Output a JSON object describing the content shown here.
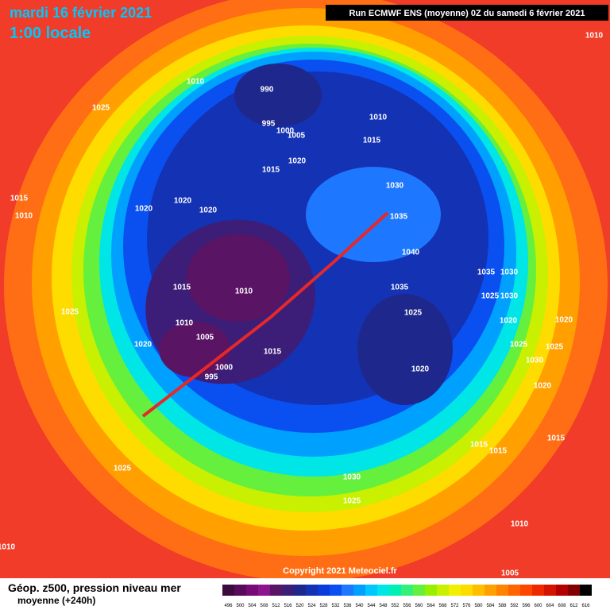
{
  "header": {
    "title": "mardi 16 février 2021",
    "subtitle": "1:00 locale",
    "run": "Run ECMWF ENS (moyenne) 0Z du samedi 6 février 2021"
  },
  "copyright": "Copyright 2021 Meteociel.fr",
  "caption": {
    "line1": "Géop. z500, pression niveau mer",
    "line2": "moyenne  (+240h)"
  },
  "legend": {
    "labels": [
      "496",
      "500",
      "504",
      "508",
      "512",
      "516",
      "520",
      "524",
      "528",
      "532",
      "536",
      "540",
      "544",
      "548",
      "552",
      "556",
      "560",
      "564",
      "568",
      "572",
      "576",
      "580",
      "584",
      "588",
      "592",
      "596",
      "600",
      "604",
      "608",
      "612",
      "616"
    ],
    "colors": [
      "#3c0a3c",
      "#5a0a5a",
      "#780a78",
      "#8c148c",
      "#5a1464",
      "#3c1e78",
      "#1e288c",
      "#1432b4",
      "#0a3cdc",
      "#0a50f0",
      "#1e78ff",
      "#00a0ff",
      "#00c8ff",
      "#00e6e6",
      "#00f0b4",
      "#32f078",
      "#64f03c",
      "#96f000",
      "#c8f000",
      "#f0f000",
      "#ffdc00",
      "#ffbe00",
      "#ffa000",
      "#ff8200",
      "#ff6400",
      "#ff4600",
      "#f02800",
      "#d21400",
      "#b40000",
      "#820000",
      "#000000"
    ]
  },
  "isobars": [
    "990",
    "995",
    "1000",
    "1005",
    "1010",
    "1025",
    "1010",
    "1015",
    "1020",
    "1015",
    "1030",
    "1035",
    "1040",
    "1035",
    "1025",
    "1020",
    "1020",
    "1020",
    "1015",
    "1010",
    "1015",
    "1010",
    "1025",
    "1010",
    "1005",
    "1020",
    "1000",
    "995",
    "1015",
    "1020",
    "1035",
    "1030",
    "1025",
    "1030",
    "1020",
    "1020",
    "1025",
    "1025",
    "1030",
    "1020",
    "1015",
    "1015",
    "1015",
    "1030",
    "1025",
    "1025",
    "1010",
    "1010",
    "1005",
    "1010"
  ]
}
